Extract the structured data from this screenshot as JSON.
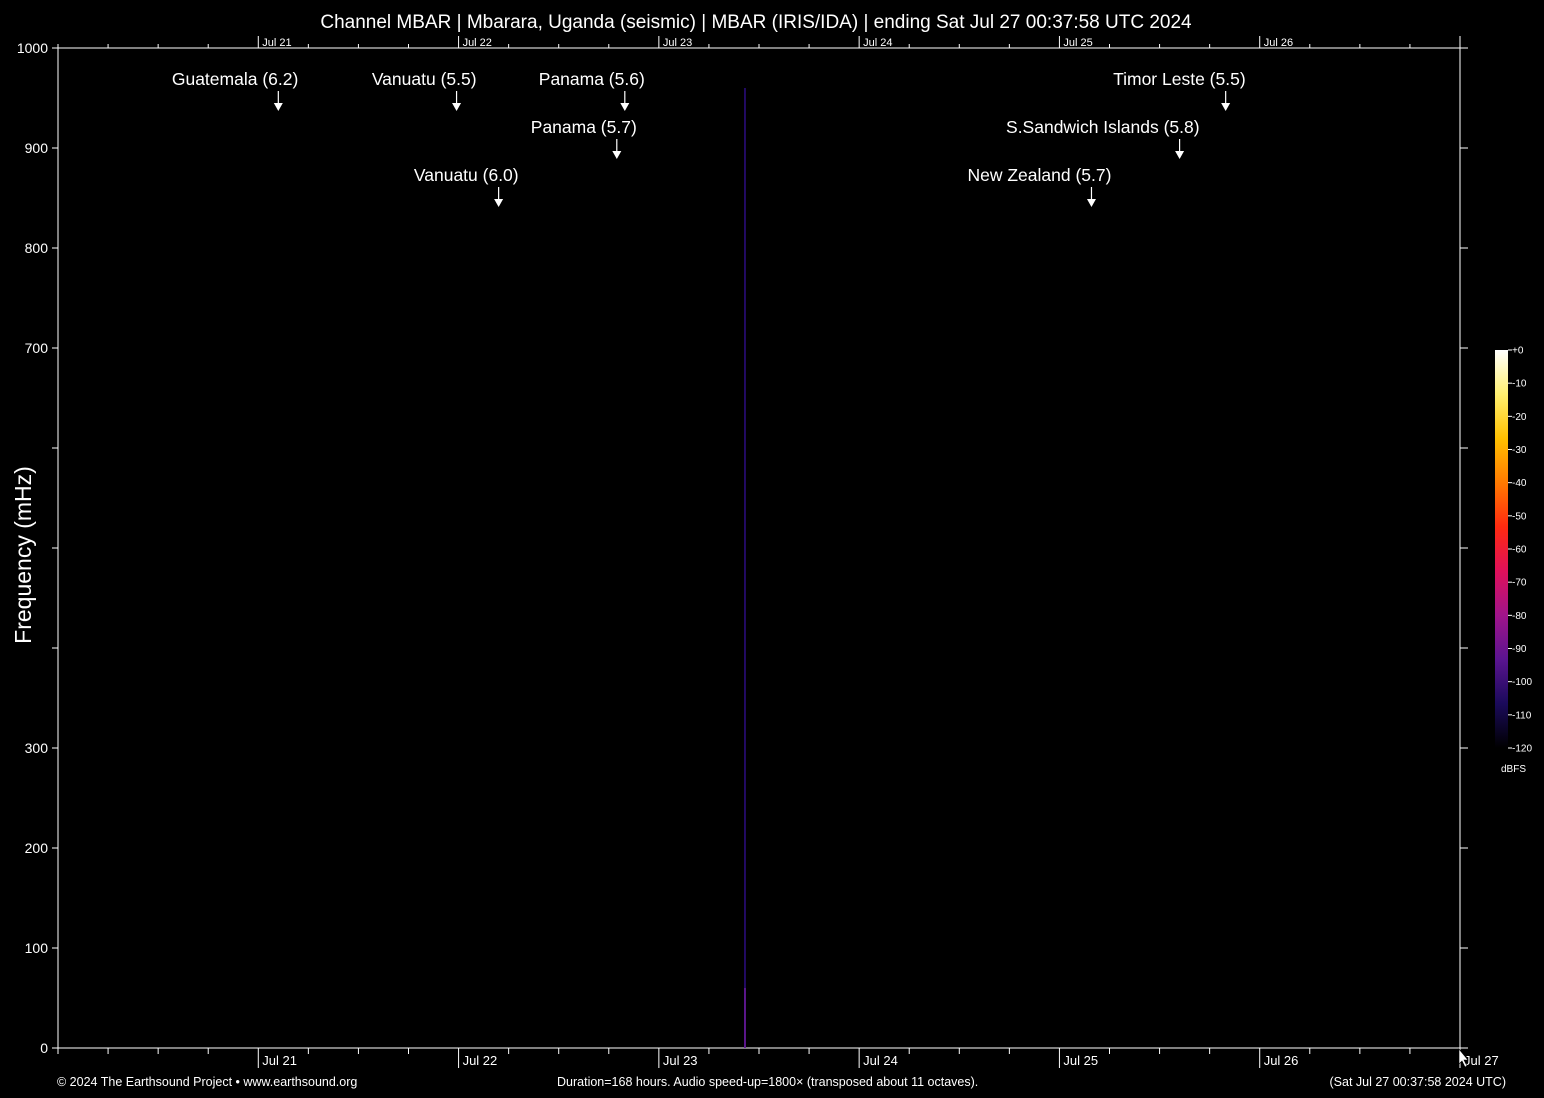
{
  "chart_data": {
    "type": "heatmap",
    "title": "Channel MBAR | Mbarara, Uganda (seismic) | MBAR (IRIS/IDA) | ending Sat Jul 27 00:37:58 UTC 2024",
    "ylabel": "Frequency (mHz)",
    "xlabel": "",
    "ylim": [
      0,
      1000
    ],
    "y_ticks": [
      0,
      100,
      200,
      300,
      400,
      500,
      600,
      700,
      800,
      900,
      1000
    ],
    "y_tick_labels": [
      "0",
      "100",
      "200",
      "300",
      "",
      "",
      "",
      "700",
      "800",
      "900",
      "1000"
    ],
    "x_range_days": [
      20.0,
      27.0
    ],
    "x_ticks_bottom": [
      {
        "day": 21,
        "label": "Jul 21"
      },
      {
        "day": 22,
        "label": "Jul 22"
      },
      {
        "day": 23,
        "label": "Jul 23"
      },
      {
        "day": 24,
        "label": "Jul 24"
      },
      {
        "day": 25,
        "label": "Jul 25"
      },
      {
        "day": 26,
        "label": "Jul 26"
      },
      {
        "day": 27,
        "label": "Jul 27"
      }
    ],
    "x_ticks_top": [
      {
        "day": 21,
        "label": "Jul 21"
      },
      {
        "day": 22,
        "label": "Jul 22"
      },
      {
        "day": 23,
        "label": "Jul 23"
      },
      {
        "day": 24,
        "label": "Jul 24"
      },
      {
        "day": 25,
        "label": "Jul 25"
      },
      {
        "day": 26,
        "label": "Jul 26"
      }
    ],
    "events": [
      {
        "label": "Guatemala (6.2)",
        "day": 21.1,
        "row": 0
      },
      {
        "label": "Vanuatu (5.5)",
        "day": 21.99,
        "row": 0
      },
      {
        "label": "Panama (5.6)",
        "day": 22.83,
        "row": 0
      },
      {
        "label": "Panama (5.7)",
        "day": 22.79,
        "row": 1
      },
      {
        "label": "Vanuatu (6.0)",
        "day": 22.2,
        "row": 2
      },
      {
        "label": "Timor Leste (5.5)",
        "day": 25.83,
        "row": 0
      },
      {
        "label": "S.Sandwich Islands (5.8)",
        "day": 25.6,
        "row": 1
      },
      {
        "label": "New Zealand (5.7)",
        "day": 25.16,
        "row": 2
      }
    ],
    "signal_lines": [
      {
        "day": 23.43,
        "freq_min": 0,
        "freq_max": 960,
        "level_dbfs": -100
      }
    ],
    "colorbar": {
      "ticks": [
        0,
        -10,
        -20,
        -30,
        -40,
        -50,
        -60,
        -70,
        -80,
        -90,
        -100,
        -110,
        -120
      ],
      "tick_labels": [
        "+0",
        "-10",
        "-20",
        "-30",
        "-40",
        "-50",
        "-60",
        "-70",
        "-80",
        "-90",
        "-100",
        "-110",
        "-120"
      ],
      "unit": "dBFS",
      "colors": [
        "#000000",
        "#1a0a5a",
        "#5a1490",
        "#a0148a",
        "#e0105a",
        "#ff2a10",
        "#ff7a00",
        "#ffc000",
        "#fff070",
        "#ffffff"
      ]
    }
  },
  "footer": {
    "copyright": "© 2024 The Earthsound Project • www.earthsound.org",
    "duration": "Duration=168 hours. Audio speed-up=1800× (transposed about 11 octaves).",
    "end_time": "(Sat Jul 27 00:37:58 2024 UTC)"
  }
}
